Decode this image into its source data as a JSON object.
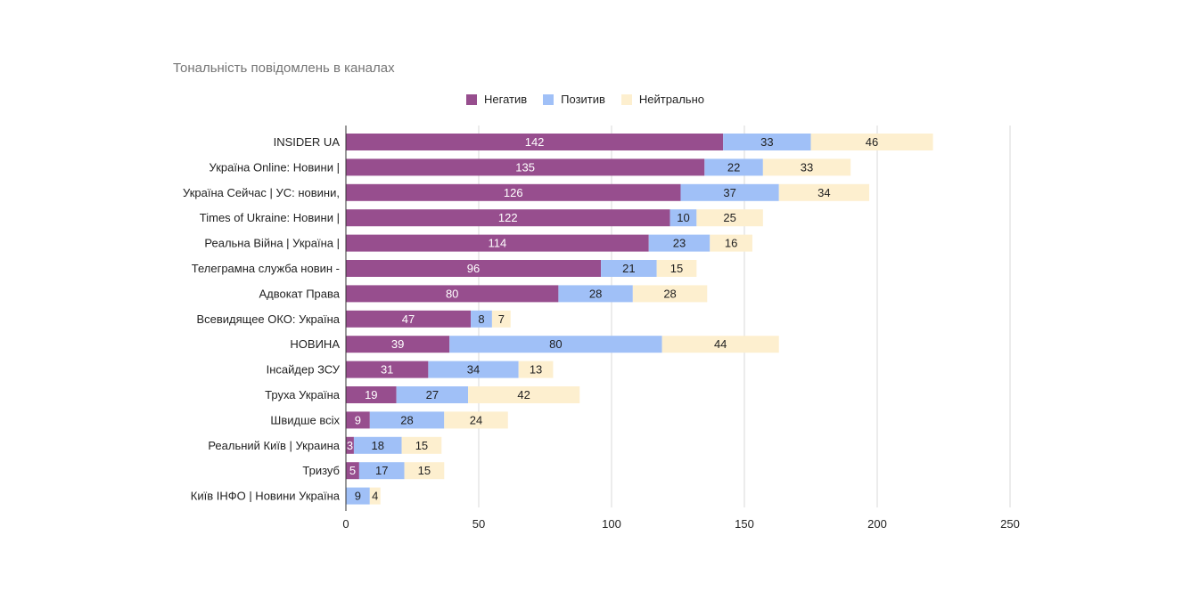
{
  "chart_data": {
    "type": "bar",
    "orientation": "horizontal",
    "stacked": true,
    "title": "Тональність повідомлень в каналах",
    "xlabel": "",
    "ylabel": "",
    "xlim": [
      0,
      250
    ],
    "xticks": [
      0,
      50,
      100,
      150,
      200,
      250
    ],
    "grid": true,
    "legend_position": "top-center",
    "categories": [
      "INSIDER UA",
      "Україна Online: Новини |",
      "Україна Сейчас | УС: новини,",
      "Times of Ukraine: Новини |",
      "Реальна Війна | Україна |",
      "Телеграмна служба новин -",
      "Адвокат Права",
      "Всевидящее ОКО: Україна",
      "НОВИНА",
      "Інсайдер ЗСУ",
      "Труха    Україна",
      "Швидше всіх",
      "Реальний Київ | Украина",
      "Тризуб",
      "Київ ІНФО | Новини Україна"
    ],
    "series": [
      {
        "name": "Негатив",
        "color": "#974e8e",
        "label_color": "#ffffff",
        "values": [
          142,
          135,
          126,
          122,
          114,
          96,
          80,
          47,
          39,
          31,
          19,
          9,
          3,
          5,
          0
        ]
      },
      {
        "name": "Позитив",
        "color": "#a0c0f7",
        "label_color": "#1f1f1f",
        "values": [
          33,
          22,
          37,
          10,
          23,
          21,
          28,
          8,
          80,
          34,
          27,
          28,
          18,
          17,
          9
        ]
      },
      {
        "name": "Нейтрально",
        "color": "#fdefcf",
        "label_color": "#1f1f1f",
        "values": [
          46,
          33,
          34,
          25,
          16,
          15,
          28,
          7,
          44,
          13,
          42,
          24,
          15,
          15,
          4
        ]
      }
    ]
  }
}
